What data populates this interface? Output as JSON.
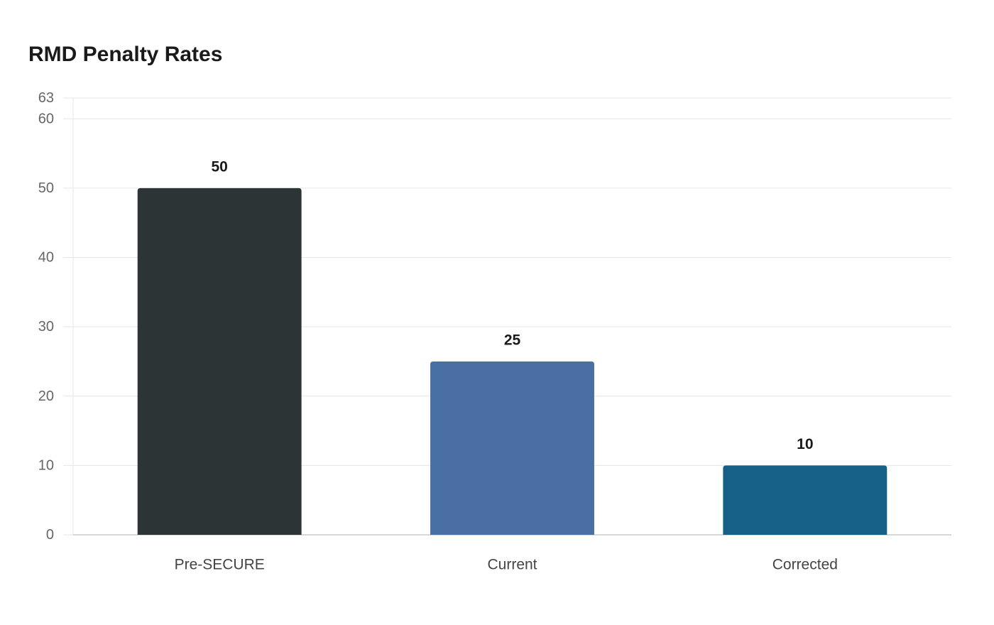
{
  "chart_data": {
    "type": "bar",
    "title": "RMD Penalty Rates",
    "xlabel": "",
    "ylabel": "",
    "categories": [
      "Pre-SECURE",
      "Current",
      "Corrected"
    ],
    "values": [
      50,
      25,
      10
    ],
    "data_labels": [
      "50",
      "25",
      "10"
    ],
    "colors": [
      "#2d3436",
      "#4a6fa5",
      "#166088"
    ],
    "ylim": [
      0,
      63
    ],
    "yticks": [
      0,
      10,
      20,
      30,
      40,
      50,
      60,
      63
    ],
    "grid": true,
    "legend": "none"
  }
}
